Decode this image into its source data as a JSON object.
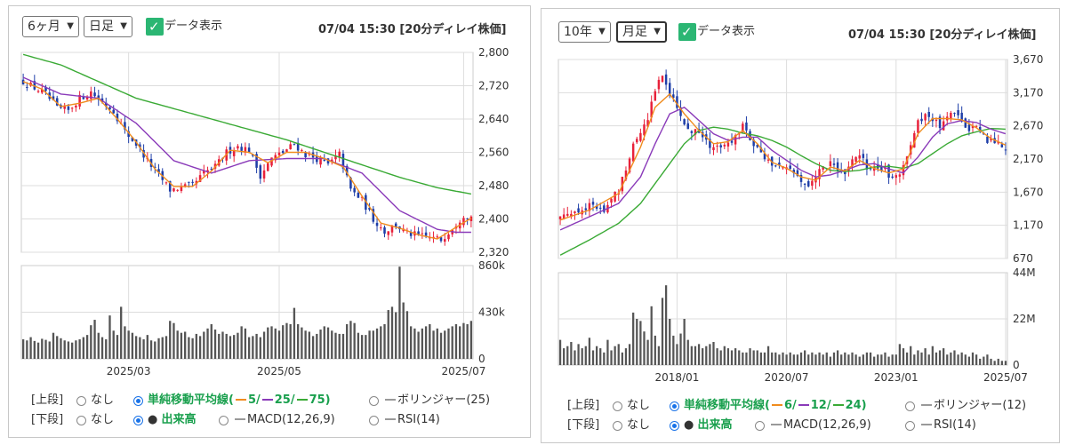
{
  "colors": {
    "up": "#e8213a",
    "down": "#1e3ea8",
    "ma_short": "#f08c1e",
    "ma_mid": "#8a3ab9",
    "ma_long": "#3aaa35",
    "volume": "#555555",
    "grid": "#dddddd",
    "accent": "#1a73e8",
    "check": "#2bb673"
  },
  "icons": {
    "checkbox": "check-icon",
    "dropdown": "chevron-down-icon",
    "radio": "radio-icon"
  },
  "panels": [
    {
      "period_select": "6ヶ月",
      "interval_select": "日足",
      "data_toggle_label": "データ表示",
      "timestamp": "07/04 15:30 [20分ディレイ株価]",
      "upper_label": "[上段]",
      "lower_label": "[下段]",
      "opt_none": "なし",
      "opt_sma_prefix": "単純移動平均線(",
      "opt_sma_p1": "5/",
      "opt_sma_p2": "25/",
      "opt_sma_p3": "75)",
      "opt_bollinger": "ボリンジャー(25)",
      "opt_volume": "出来高",
      "opt_macd": "MACD(12,26,9)",
      "opt_rsi": "RSI(14)"
    },
    {
      "period_select": "10年",
      "interval_select": "月足",
      "data_toggle_label": "データ表示",
      "timestamp": "07/04 15:30 [20分ディレイ株価]",
      "upper_label": "[上段]",
      "lower_label": "[下段]",
      "opt_none": "なし",
      "opt_sma_prefix": "単純移動平均線(",
      "opt_sma_p1": "6/",
      "opt_sma_p2": "12/",
      "opt_sma_p3": "24)",
      "opt_bollinger": "ボリンジャー(12)",
      "opt_volume": "出来高",
      "opt_macd": "MACD(12,26,9)",
      "opt_rsi": "RSI(14)"
    }
  ],
  "chart_data": [
    {
      "type": "candlestick",
      "price_ticks": [
        "2,800",
        "2,720",
        "2,640",
        "2,560",
        "2,480",
        "2,400",
        "2,320"
      ],
      "ylim": [
        2320,
        2800
      ],
      "volume_ticks": [
        "860k",
        "430k",
        "0"
      ],
      "volume_ylim": [
        0,
        860
      ],
      "x_tick_labels": [
        "2025/03",
        "2025/05",
        "2025/07"
      ],
      "x_tick_positions": [
        28,
        68,
        117
      ],
      "n": 120,
      "price_path": [
        [
          0,
          2730
        ],
        [
          3,
          2715
        ],
        [
          6,
          2700
        ],
        [
          9,
          2665
        ],
        [
          12,
          2660
        ],
        [
          15,
          2690
        ],
        [
          18,
          2705
        ],
        [
          21,
          2680
        ],
        [
          24,
          2660
        ],
        [
          27,
          2610
        ],
        [
          30,
          2580
        ],
        [
          33,
          2540
        ],
        [
          36,
          2505
        ],
        [
          39,
          2470
        ],
        [
          42,
          2475
        ],
        [
          45,
          2480
        ],
        [
          48,
          2510
        ],
        [
          51,
          2525
        ],
        [
          54,
          2560
        ],
        [
          57,
          2575
        ],
        [
          60,
          2565
        ],
        [
          63,
          2505
        ],
        [
          66,
          2545
        ],
        [
          69,
          2560
        ],
        [
          72,
          2580
        ],
        [
          75,
          2555
        ],
        [
          78,
          2545
        ],
        [
          81,
          2530
        ],
        [
          84,
          2555
        ],
        [
          87,
          2470
        ],
        [
          90,
          2445
        ],
        [
          93,
          2400
        ],
        [
          96,
          2370
        ],
        [
          99,
          2385
        ],
        [
          102,
          2365
        ],
        [
          105,
          2360
        ],
        [
          108,
          2355
        ],
        [
          111,
          2350
        ],
        [
          114,
          2380
        ],
        [
          117,
          2410
        ],
        [
          119,
          2405
        ]
      ],
      "volume_k": [
        180,
        170,
        200,
        165,
        150,
        185,
        175,
        160,
        240,
        210,
        190,
        170,
        160,
        150,
        170,
        180,
        200,
        220,
        310,
        360,
        240,
        200,
        180,
        400,
        260,
        220,
        480,
        300,
        260,
        240,
        210,
        200,
        180,
        220,
        170,
        160,
        190,
        200,
        210,
        350,
        330,
        260,
        240,
        250,
        200,
        190,
        230,
        210,
        250,
        280,
        320,
        270,
        230,
        250,
        230,
        210,
        220,
        240,
        300,
        280,
        200,
        210,
        230,
        200,
        250,
        290,
        300,
        280,
        260,
        310,
        330,
        320,
        470,
        320,
        290,
        260,
        250,
        210,
        230,
        270,
        300,
        290,
        260,
        240,
        230,
        230,
        320,
        350,
        330,
        240,
        220,
        220,
        260,
        260,
        280,
        300,
        320,
        450,
        480,
        430,
        850,
        520,
        440,
        300,
        280,
        250,
        280,
        300,
        320,
        260,
        280,
        240,
        260,
        280,
        300,
        320,
        300,
        330,
        320,
        350
      ],
      "ma_short_path": [
        [
          0,
          2730
        ],
        [
          5,
          2712
        ],
        [
          10,
          2670
        ],
        [
          15,
          2678
        ],
        [
          20,
          2690
        ],
        [
          25,
          2640
        ],
        [
          30,
          2585
        ],
        [
          35,
          2520
        ],
        [
          40,
          2478
        ],
        [
          45,
          2478
        ],
        [
          50,
          2515
        ],
        [
          55,
          2565
        ],
        [
          60,
          2560
        ],
        [
          65,
          2535
        ],
        [
          70,
          2560
        ],
        [
          75,
          2560
        ],
        [
          80,
          2545
        ],
        [
          85,
          2525
        ],
        [
          90,
          2455
        ],
        [
          95,
          2390
        ],
        [
          100,
          2378
        ],
        [
          105,
          2362
        ],
        [
          110,
          2352
        ],
        [
          115,
          2380
        ],
        [
          119,
          2402
        ]
      ],
      "ma_mid_path": [
        [
          0,
          2740
        ],
        [
          10,
          2700
        ],
        [
          20,
          2690
        ],
        [
          30,
          2630
        ],
        [
          40,
          2540
        ],
        [
          50,
          2510
        ],
        [
          60,
          2540
        ],
        [
          70,
          2545
        ],
        [
          80,
          2545
        ],
        [
          90,
          2510
        ],
        [
          100,
          2420
        ],
        [
          110,
          2375
        ],
        [
          115,
          2368
        ],
        [
          119,
          2368
        ]
      ],
      "ma_long_path": [
        [
          0,
          2795
        ],
        [
          10,
          2770
        ],
        [
          20,
          2730
        ],
        [
          30,
          2690
        ],
        [
          40,
          2665
        ],
        [
          50,
          2640
        ],
        [
          60,
          2615
        ],
        [
          70,
          2590
        ],
        [
          80,
          2560
        ],
        [
          90,
          2530
        ],
        [
          100,
          2500
        ],
        [
          110,
          2475
        ],
        [
          119,
          2460
        ]
      ]
    },
    {
      "type": "candlestick",
      "price_ticks": [
        "3,670",
        "3,170",
        "2,670",
        "2,170",
        "1,670",
        "1,170",
        "670"
      ],
      "ylim": [
        670,
        3670
      ],
      "volume_ticks": [
        "44M",
        "22M",
        "0"
      ],
      "volume_ylim": [
        0,
        44
      ],
      "x_tick_labels": [
        "2018/01",
        "2020/07",
        "2023/01",
        "2025/07"
      ],
      "x_tick_positions": [
        32,
        62,
        92,
        122
      ],
      "n": 123,
      "price_path": [
        [
          0,
          1300
        ],
        [
          4,
          1400
        ],
        [
          8,
          1450
        ],
        [
          12,
          1400
        ],
        [
          16,
          1700
        ],
        [
          20,
          2400
        ],
        [
          24,
          2800
        ],
        [
          26,
          3250
        ],
        [
          28,
          3400
        ],
        [
          30,
          3150
        ],
        [
          32,
          3000
        ],
        [
          34,
          2700
        ],
        [
          36,
          2550
        ],
        [
          38,
          2600
        ],
        [
          40,
          2400
        ],
        [
          42,
          2300
        ],
        [
          44,
          2400
        ],
        [
          46,
          2450
        ],
        [
          48,
          2500
        ],
        [
          50,
          2650
        ],
        [
          52,
          2500
        ],
        [
          54,
          2300
        ],
        [
          56,
          2200
        ],
        [
          58,
          2050
        ],
        [
          60,
          2100
        ],
        [
          62,
          2000
        ],
        [
          64,
          1950
        ],
        [
          66,
          1850
        ],
        [
          68,
          1800
        ],
        [
          70,
          1900
        ],
        [
          72,
          2050
        ],
        [
          74,
          2100
        ],
        [
          76,
          1950
        ],
        [
          78,
          2000
        ],
        [
          80,
          2150
        ],
        [
          82,
          2200
        ],
        [
          84,
          2050
        ],
        [
          86,
          2000
        ],
        [
          88,
          2000
        ],
        [
          90,
          1950
        ],
        [
          92,
          1900
        ],
        [
          94,
          2100
        ],
        [
          96,
          2400
        ],
        [
          98,
          2700
        ],
        [
          100,
          2800
        ],
        [
          102,
          2750
        ],
        [
          104,
          2650
        ],
        [
          106,
          2850
        ],
        [
          108,
          2800
        ],
        [
          110,
          2750
        ],
        [
          112,
          2650
        ],
        [
          114,
          2600
        ],
        [
          116,
          2500
        ],
        [
          118,
          2450
        ],
        [
          120,
          2400
        ],
        [
          122,
          2350
        ]
      ],
      "volume_M": [
        12,
        8,
        9,
        11,
        7,
        10,
        8,
        9,
        13,
        7,
        9,
        8,
        6,
        12,
        7,
        9,
        10,
        6,
        8,
        10,
        25,
        22,
        21,
        16,
        12,
        28,
        14,
        9,
        32,
        38,
        22,
        14,
        10,
        15,
        22,
        12,
        9,
        9,
        10,
        8,
        9,
        10,
        11,
        8,
        7,
        9,
        8,
        7,
        8,
        7,
        6,
        6,
        8,
        7,
        7,
        6,
        6,
        9,
        6,
        6,
        5,
        6,
        5,
        6,
        5,
        5,
        6,
        7,
        5,
        6,
        5,
        6,
        5,
        6,
        4,
        6,
        7,
        5,
        6,
        5,
        6,
        5,
        4,
        5,
        6,
        6,
        4,
        5,
        5,
        6,
        4,
        5,
        5,
        10,
        8,
        6,
        9,
        5,
        7,
        6,
        8,
        5,
        9,
        6,
        7,
        8,
        5,
        6,
        7,
        5,
        6,
        5,
        4,
        6,
        5,
        3,
        4,
        5,
        3,
        2,
        3,
        2,
        2
      ],
      "ma_short_path": [
        [
          0,
          1250
        ],
        [
          8,
          1400
        ],
        [
          16,
          1650
        ],
        [
          22,
          2350
        ],
        [
          26,
          2950
        ],
        [
          30,
          3150
        ],
        [
          34,
          2850
        ],
        [
          38,
          2600
        ],
        [
          42,
          2400
        ],
        [
          46,
          2430
        ],
        [
          50,
          2600
        ],
        [
          54,
          2400
        ],
        [
          58,
          2120
        ],
        [
          62,
          2030
        ],
        [
          66,
          1900
        ],
        [
          70,
          1850
        ],
        [
          74,
          2050
        ],
        [
          78,
          1990
        ],
        [
          82,
          2150
        ],
        [
          86,
          2030
        ],
        [
          90,
          1960
        ],
        [
          94,
          2020
        ],
        [
          98,
          2550
        ],
        [
          102,
          2780
        ],
        [
          106,
          2780
        ],
        [
          110,
          2760
        ],
        [
          114,
          2640
        ],
        [
          118,
          2480
        ],
        [
          122,
          2380
        ]
      ],
      "ma_mid_path": [
        [
          0,
          1100
        ],
        [
          8,
          1300
        ],
        [
          16,
          1500
        ],
        [
          22,
          1900
        ],
        [
          26,
          2400
        ],
        [
          30,
          2850
        ],
        [
          34,
          2950
        ],
        [
          38,
          2750
        ],
        [
          42,
          2550
        ],
        [
          46,
          2450
        ],
        [
          50,
          2500
        ],
        [
          54,
          2500
        ],
        [
          58,
          2300
        ],
        [
          62,
          2150
        ],
        [
          66,
          2000
        ],
        [
          70,
          1900
        ],
        [
          74,
          1930
        ],
        [
          78,
          2000
        ],
        [
          82,
          2080
        ],
        [
          86,
          2100
        ],
        [
          90,
          2020
        ],
        [
          94,
          1960
        ],
        [
          98,
          2200
        ],
        [
          102,
          2500
        ],
        [
          106,
          2700
        ],
        [
          110,
          2750
        ],
        [
          114,
          2720
        ],
        [
          118,
          2620
        ],
        [
          122,
          2550
        ]
      ],
      "ma_long_path": [
        [
          0,
          720
        ],
        [
          8,
          950
        ],
        [
          16,
          1200
        ],
        [
          22,
          1500
        ],
        [
          26,
          1800
        ],
        [
          30,
          2100
        ],
        [
          34,
          2400
        ],
        [
          38,
          2600
        ],
        [
          42,
          2650
        ],
        [
          46,
          2620
        ],
        [
          50,
          2560
        ],
        [
          54,
          2520
        ],
        [
          58,
          2450
        ],
        [
          62,
          2350
        ],
        [
          66,
          2220
        ],
        [
          70,
          2100
        ],
        [
          74,
          2000
        ],
        [
          78,
          1980
        ],
        [
          82,
          2000
        ],
        [
          86,
          2050
        ],
        [
          90,
          2060
        ],
        [
          94,
          2030
        ],
        [
          98,
          2100
        ],
        [
          102,
          2250
        ],
        [
          106,
          2400
        ],
        [
          110,
          2520
        ],
        [
          114,
          2580
        ],
        [
          118,
          2630
        ],
        [
          122,
          2620
        ]
      ]
    }
  ]
}
